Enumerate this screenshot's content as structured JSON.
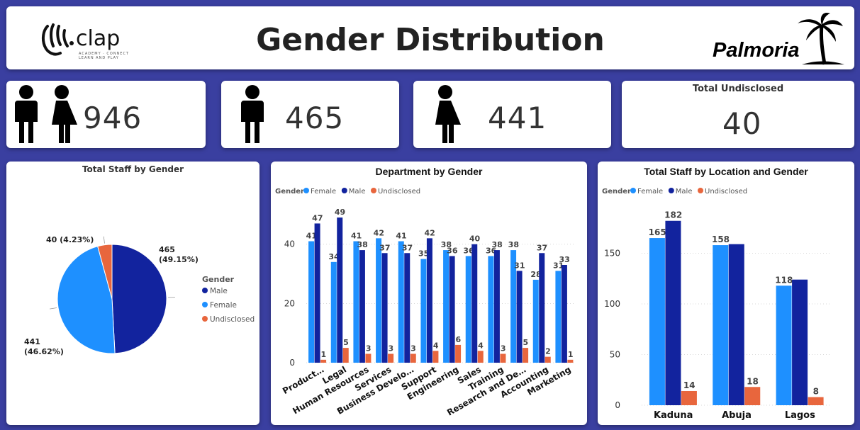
{
  "header": {
    "title": "Gender Distribution",
    "left_logo": {
      "text": "clap",
      "tagline": "ACADEMY · CONNECT LEARN AND PLAY"
    },
    "right_logo": {
      "text": "Palmoria"
    }
  },
  "kpis": {
    "total": {
      "value": "946"
    },
    "male": {
      "value": "465"
    },
    "female": {
      "value": "441"
    },
    "undisclosed": {
      "label": "Total Undisclosed",
      "value": "40"
    }
  },
  "colors": {
    "female": "#1e90ff",
    "male": "#12239e",
    "undisclosed": "#e8663d"
  },
  "chart_data": [
    {
      "type": "pie",
      "title": "Total Staff by Gender",
      "legend_title": "Gender",
      "legend_position": "right",
      "slices": [
        {
          "name": "Male",
          "value": 465,
          "label": "465\n(49.15%)"
        },
        {
          "name": "Female",
          "value": 441,
          "label": "441\n(46.62%)"
        },
        {
          "name": "Undisclosed",
          "value": 40,
          "label": "40 (4.23%)"
        }
      ]
    },
    {
      "type": "bar",
      "title": "Department by Gender",
      "legend_title": "Gender",
      "legend_position": "top-left",
      "categories": [
        "Product…",
        "Legal",
        "Human Resources",
        "Services",
        "Business Develo…",
        "Support",
        "Engineering",
        "Sales",
        "Training",
        "Research and De…",
        "Accounting",
        "Marketing"
      ],
      "series": [
        {
          "name": "Female",
          "values": [
            41,
            34,
            41,
            42,
            41,
            35,
            38,
            36,
            36,
            38,
            28,
            31
          ]
        },
        {
          "name": "Male",
          "values": [
            47,
            49,
            38,
            37,
            37,
            42,
            36,
            40,
            38,
            31,
            37,
            33
          ]
        },
        {
          "name": "Undisclosed",
          "values": [
            1,
            5,
            3,
            3,
            3,
            4,
            6,
            4,
            3,
            5,
            2,
            1
          ]
        }
      ],
      "ylim": [
        0,
        55
      ],
      "yticks": [
        0,
        20,
        40
      ],
      "grid": true
    },
    {
      "type": "bar",
      "title": "Total Staff by Location and Gender",
      "legend_title": "Gender",
      "legend_position": "top-left",
      "categories": [
        "Kaduna",
        "Abuja",
        "Lagos"
      ],
      "series": [
        {
          "name": "Female",
          "values": [
            165,
            158,
            118
          ]
        },
        {
          "name": "Male",
          "values": [
            182,
            159,
            124
          ]
        },
        {
          "name": "Undisclosed",
          "values": [
            14,
            18,
            8
          ]
        }
      ],
      "data_labels": [
        [
          "165",
          "158",
          "118"
        ],
        [
          "182",
          "",
          ""
        ],
        [
          "14",
          "18",
          "8"
        ]
      ],
      "ylim": [
        0,
        200
      ],
      "yticks": [
        0,
        50,
        100,
        150
      ],
      "grid": true
    }
  ]
}
